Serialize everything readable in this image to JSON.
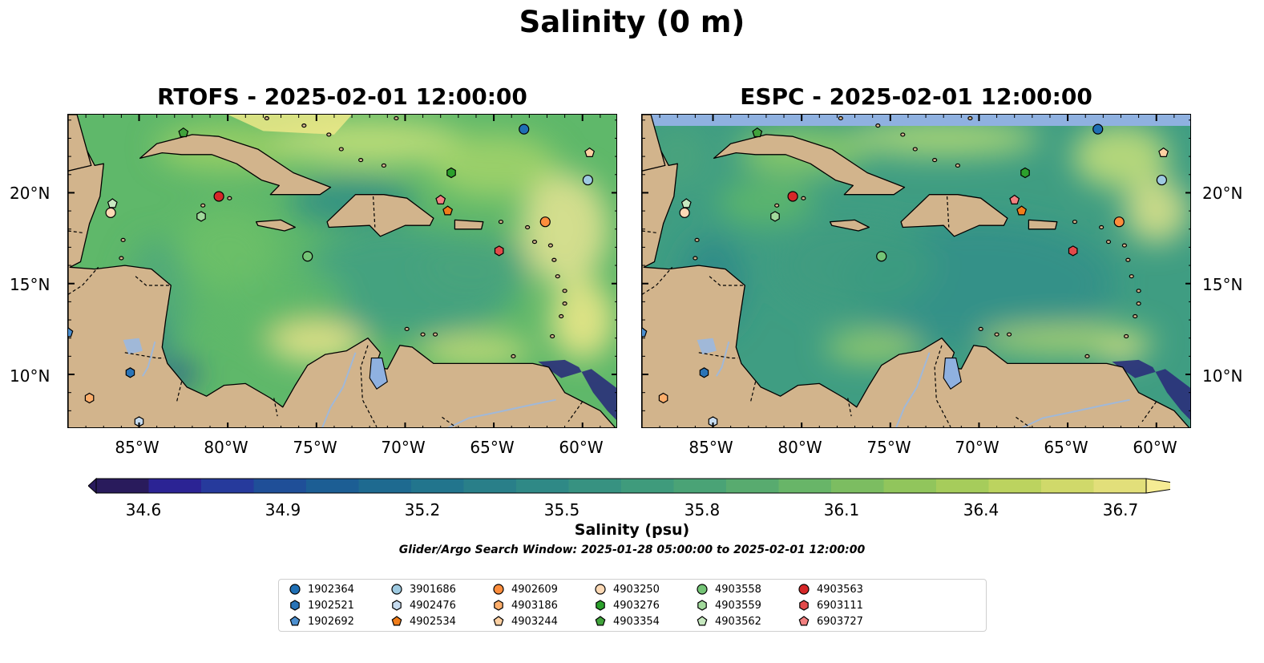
{
  "title": "Salinity (0 m)",
  "panels": [
    {
      "title": "RTOFS - 2025-02-01 12:00:00"
    },
    {
      "title": "ESPC - 2025-02-01 12:00:00"
    }
  ],
  "lat_ticks": [
    "20°N",
    "15°N",
    "10°N"
  ],
  "lon_ticks": [
    "85°W",
    "80°W",
    "75°W",
    "70°W",
    "65°W",
    "60°W"
  ],
  "colorbar": {
    "label": "Salinity (psu)",
    "ticks": [
      "34.6",
      "34.9",
      "35.2",
      "35.5",
      "35.8",
      "36.1",
      "36.4",
      "36.7"
    ],
    "range": [
      34.6,
      36.7
    ],
    "colormap": "haline"
  },
  "search_window": "Glider/Argo Search Window: 2025-01-28 05:00:00 to 2025-02-01 12:00:00",
  "map_extent": {
    "lon": [
      -89,
      -58
    ],
    "lat": [
      7,
      24.3
    ]
  },
  "colors": {
    "land": "#d2b48c",
    "lake": "#8fb1e0",
    "river": "#a0b8d8",
    "nodata_strip": "#8fb1e0"
  },
  "floats": [
    {
      "id": "1902364",
      "lon": -63.3,
      "lat": 23.5,
      "marker": "circle",
      "color": "#1f6fb4"
    },
    {
      "id": "1902521",
      "lon": -85.5,
      "lat": 10.1,
      "marker": "hexagon",
      "color": "#2a74b7"
    },
    {
      "id": "1902692",
      "lon": -89.0,
      "lat": 12.3,
      "marker": "pentagon",
      "color": "#4c8fcf"
    },
    {
      "id": "3901686",
      "lon": -59.7,
      "lat": 20.7,
      "marker": "circle",
      "color": "#9ecae1"
    },
    {
      "id": "4902476",
      "lon": -85.0,
      "lat": 7.4,
      "marker": "hexagon",
      "color": "#c6dbef"
    },
    {
      "id": "4902534",
      "lon": -67.6,
      "lat": 19.0,
      "marker": "pentagon",
      "color": "#f07d1a"
    },
    {
      "id": "4902609",
      "lon": -62.1,
      "lat": 18.4,
      "marker": "circle",
      "color": "#fd8d3c"
    },
    {
      "id": "4903186",
      "lon": -87.8,
      "lat": 8.7,
      "marker": "hexagon",
      "color": "#fdae6b"
    },
    {
      "id": "4903244",
      "lon": -59.6,
      "lat": 22.2,
      "marker": "pentagon",
      "color": "#fdd0a2"
    },
    {
      "id": "4903250",
      "lon": -86.6,
      "lat": 18.9,
      "marker": "circle",
      "color": "#fdd9b5"
    },
    {
      "id": "4903276",
      "lon": -67.4,
      "lat": 21.1,
      "marker": "hexagon",
      "color": "#2ca02c"
    },
    {
      "id": "4903354",
      "lon": -82.5,
      "lat": 23.3,
      "marker": "pentagon",
      "color": "#41a33c"
    },
    {
      "id": "4903558",
      "lon": -75.5,
      "lat": 16.5,
      "marker": "circle",
      "color": "#74c476"
    },
    {
      "id": "4903559",
      "lon": -81.5,
      "lat": 18.7,
      "marker": "hexagon",
      "color": "#a1d99b"
    },
    {
      "id": "4903562",
      "lon": -86.5,
      "lat": 19.4,
      "marker": "pentagon",
      "color": "#c7e9c0"
    },
    {
      "id": "4903563",
      "lon": -80.5,
      "lat": 19.8,
      "marker": "circle",
      "color": "#d62728"
    },
    {
      "id": "6903111",
      "lon": -64.7,
      "lat": 16.8,
      "marker": "hexagon",
      "color": "#e24a4a"
    },
    {
      "id": "6903727",
      "lon": -68.0,
      "lat": 19.6,
      "marker": "pentagon",
      "color": "#f28080"
    }
  ]
}
